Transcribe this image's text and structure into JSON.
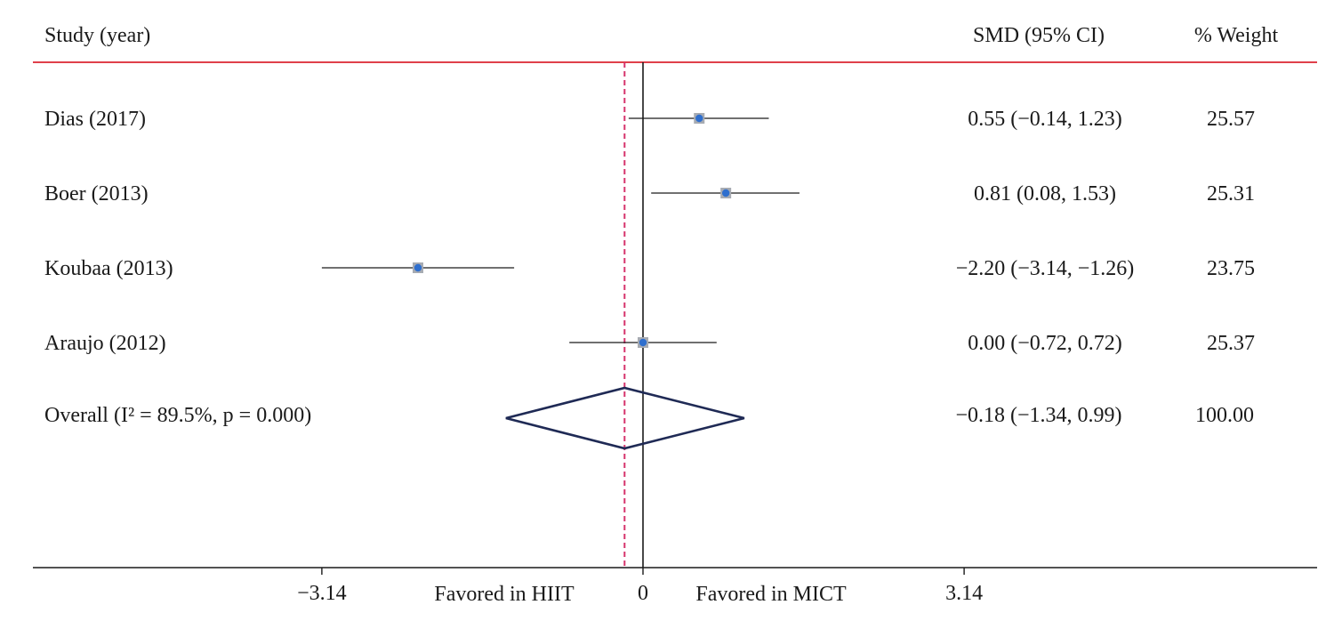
{
  "chart_data": {
    "type": "forest",
    "columns": {
      "study": "Study (year)",
      "effect": "SMD (95% CI)",
      "weight": "% Weight"
    },
    "studies": [
      {
        "label": "Dias (2017)",
        "est": 0.55,
        "lo": -0.14,
        "hi": 1.23,
        "ci_text": "0.55 (−0.14, 1.23)",
        "weight": "25.57"
      },
      {
        "label": "Boer (2013)",
        "est": 0.81,
        "lo": 0.08,
        "hi": 1.53,
        "ci_text": "0.81 (0.08, 1.53)",
        "weight": "25.31"
      },
      {
        "label": "Koubaa (2013)",
        "est": -2.2,
        "lo": -3.14,
        "hi": -1.26,
        "ci_text": "−2.20 (−3.14, −1.26)",
        "weight": "23.75"
      },
      {
        "label": "Araujo (2012)",
        "est": 0.0,
        "lo": -0.72,
        "hi": 0.72,
        "ci_text": "0.00 (−0.72, 0.72)",
        "weight": "25.37"
      }
    ],
    "overall": {
      "label": "Overall  (I² = 89.5%, p = 0.000)",
      "est": -0.18,
      "lo": -1.34,
      "hi": 0.99,
      "ci_text": "−0.18 (−1.34, 0.99)",
      "weight": "100.00"
    },
    "x_ticks": [
      {
        "value": -3.14,
        "label": "−3.14"
      },
      {
        "value": 0,
        "label": "0"
      },
      {
        "value": 3.14,
        "label": "3.14"
      }
    ],
    "favor_left": "Favored in HIIT",
    "favor_right": "Favored in MICT",
    "null_value": 0,
    "colors": {
      "header_rule": "#e0404a",
      "dashed_line": "#d6336c",
      "marker_fill": "#2f6fce",
      "marker_box": "#a7abb2",
      "diamond": "#1f2a55",
      "lines": "#1a1a1a"
    }
  }
}
